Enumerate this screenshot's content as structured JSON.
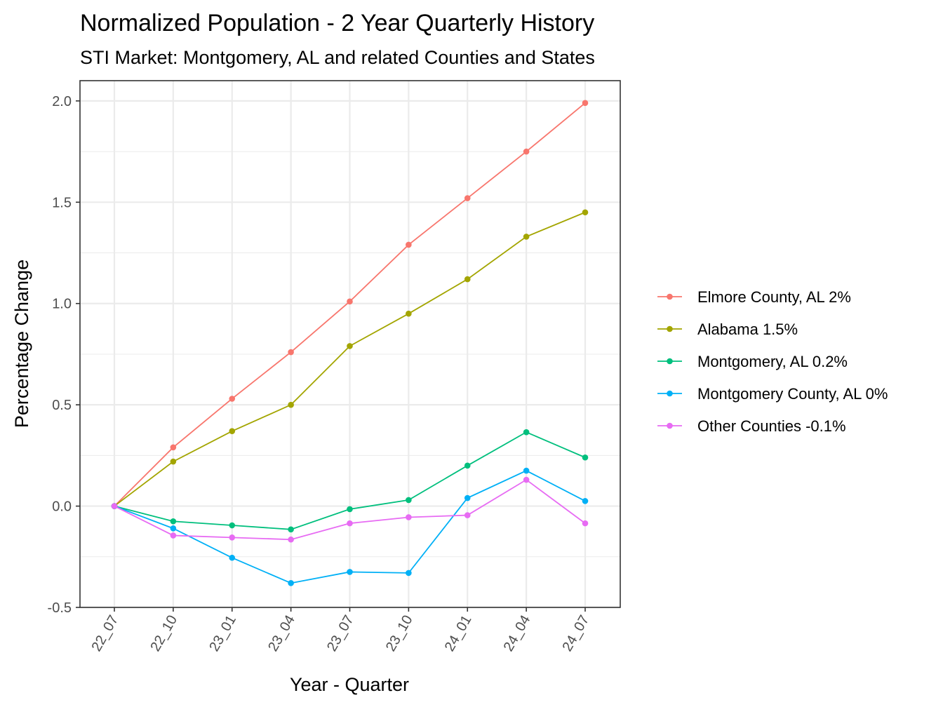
{
  "chart_data": {
    "type": "line",
    "title": "Normalized Population - 2 Year Quarterly History",
    "subtitle": "STI Market: Montgomery, AL and related Counties and States",
    "xlabel": "Year - Quarter",
    "ylabel": "Percentage Change",
    "categories": [
      "22_07",
      "22_10",
      "23_01",
      "23_04",
      "23_07",
      "23_10",
      "24_01",
      "24_04",
      "24_07"
    ],
    "ylim": [
      -0.5,
      2.1
    ],
    "yticks": [
      "-0.5",
      "0.0",
      "0.5",
      "1.0",
      "1.5",
      "2.0"
    ],
    "grid": true,
    "legend_position": "right",
    "series": [
      {
        "name": "Elmore County, AL 2%",
        "color": "#F8766D",
        "values": [
          0.0,
          0.29,
          0.53,
          0.76,
          1.01,
          1.29,
          1.52,
          1.75,
          1.99
        ]
      },
      {
        "name": "Alabama 1.5%",
        "color": "#A3A500",
        "values": [
          0.0,
          0.22,
          0.37,
          0.5,
          0.79,
          0.95,
          1.12,
          1.33,
          1.45
        ]
      },
      {
        "name": "Montgomery, AL 0.2%",
        "color": "#00BF7D",
        "values": [
          0.0,
          -0.075,
          -0.095,
          -0.115,
          -0.015,
          0.03,
          0.2,
          0.365,
          0.24
        ]
      },
      {
        "name": "Montgomery County, AL 0%",
        "color": "#00B0F6",
        "values": [
          0.0,
          -0.11,
          -0.255,
          -0.38,
          -0.325,
          -0.33,
          0.04,
          0.175,
          0.025
        ]
      },
      {
        "name": "Other Counties -0.1%",
        "color": "#E76BF3",
        "values": [
          0.0,
          -0.145,
          -0.155,
          -0.165,
          -0.085,
          -0.055,
          -0.045,
          0.13,
          -0.085
        ]
      }
    ]
  }
}
